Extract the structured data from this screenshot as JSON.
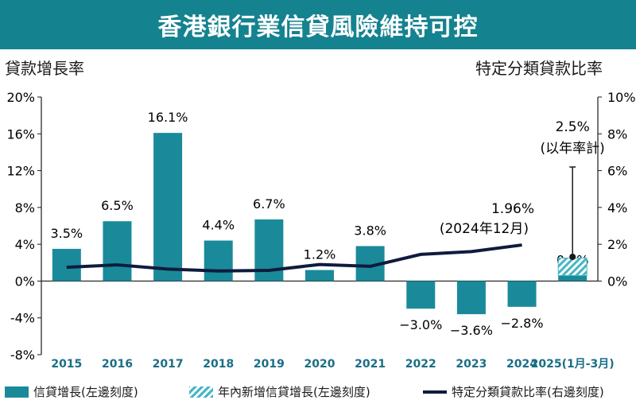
{
  "title": "香港銀行業信貸風險維持可控",
  "colors": {
    "bar": "#1a8a9a",
    "hatch": "#48b6c4",
    "line": "#0f1b3d",
    "title_bg": "#15828f"
  },
  "chart_data": {
    "type": "bar",
    "left_axis_title": "貸款增長率",
    "right_axis_title": "特定分類貸款比率",
    "categories": [
      "2015",
      "2016",
      "2017",
      "2018",
      "2019",
      "2020",
      "2021",
      "2022",
      "2023",
      "2024",
      "2025(1月-3月)"
    ],
    "left_ylim": [
      -8,
      20
    ],
    "left_ticks": [
      "20%",
      "16%",
      "12%",
      "8%",
      "4%",
      "0%",
      "-4%",
      "-8%"
    ],
    "right_ylim": [
      -4,
      10
    ],
    "right_ticks": [
      "10%",
      "8%",
      "6%",
      "4%",
      "2%",
      "0%"
    ],
    "series": [
      {
        "name": "信貸增長(左邊刻度)",
        "type": "bar",
        "axis": "left",
        "values": [
          3.5,
          6.5,
          16.1,
          4.4,
          6.7,
          1.2,
          3.8,
          -3.0,
          -3.6,
          -2.8,
          0.6
        ],
        "labels": [
          "3.5%",
          "6.5%",
          "16.1%",
          "4.4%",
          "6.7%",
          "1.2%",
          "3.8%",
          "−3.0%",
          "−3.6%",
          "−2.8%",
          "0.6%"
        ]
      },
      {
        "name": "年內新增信貸增長(左邊刻度)",
        "type": "bar-hatched",
        "axis": "left",
        "values": [
          null,
          null,
          null,
          null,
          null,
          null,
          null,
          null,
          null,
          null,
          1.9
        ]
      },
      {
        "name": "特定分類貸款比率(右邊刻度)",
        "type": "line",
        "axis": "right",
        "values": [
          0.75,
          0.88,
          0.65,
          0.55,
          0.58,
          0.9,
          0.8,
          1.45,
          1.6,
          1.96,
          null
        ]
      }
    ],
    "annotations": [
      {
        "text": "1.96%",
        "sub": "(2024年12月)"
      },
      {
        "text": "2.5%",
        "sub": "(以年率計)",
        "value": 2.5
      }
    ],
    "legend": [
      {
        "label": "信貸增長(左邊刻度)"
      },
      {
        "label": "年內新增信貸增長(左邊刻度)"
      },
      {
        "label": "特定分類貸款比率(右邊刻度)"
      }
    ]
  }
}
